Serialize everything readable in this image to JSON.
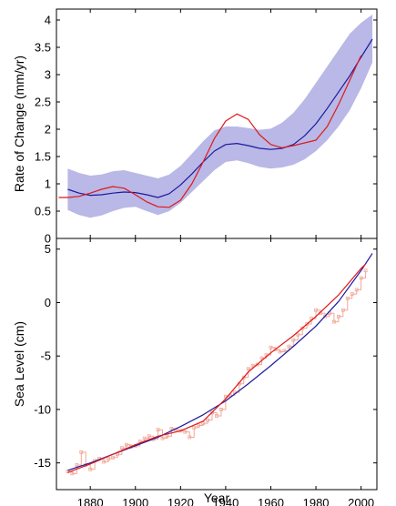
{
  "chart_data": [
    {
      "type": "line",
      "panel": "top",
      "title": "",
      "xlabel": "",
      "ylabel": "Rate of Change (mm/yr)",
      "xlim": [
        1865,
        2007
      ],
      "ylim": [
        0,
        4.2
      ],
      "grid": false,
      "legend": "none",
      "x_ticks": [
        1880,
        1900,
        1920,
        1940,
        1960,
        1980,
        2000
      ],
      "y_ticks": [
        "0",
        "0.5",
        "1",
        "1.5",
        "2",
        "2.5",
        "3",
        "3.5",
        "4"
      ],
      "colors": {
        "band": "#b9b8e6",
        "blue": "#1a1aa0",
        "red": "#e01818"
      },
      "series": [
        {
          "style": "band",
          "x": [
            1870,
            1875,
            1880,
            1885,
            1890,
            1895,
            1900,
            1905,
            1910,
            1915,
            1920,
            1925,
            1930,
            1935,
            1940,
            1945,
            1950,
            1955,
            1960,
            1965,
            1970,
            1975,
            1980,
            1985,
            1990,
            1995,
            2000,
            2005
          ],
          "lower": [
            0.52,
            0.43,
            0.38,
            0.42,
            0.5,
            0.56,
            0.58,
            0.5,
            0.43,
            0.5,
            0.65,
            0.85,
            1.05,
            1.25,
            1.4,
            1.43,
            1.38,
            1.31,
            1.28,
            1.3,
            1.35,
            1.45,
            1.6,
            1.8,
            2.05,
            2.35,
            2.75,
            3.22
          ],
          "upper": [
            1.28,
            1.2,
            1.15,
            1.17,
            1.23,
            1.25,
            1.2,
            1.15,
            1.1,
            1.17,
            1.33,
            1.55,
            1.78,
            1.98,
            2.05,
            2.05,
            2.02,
            1.99,
            2.01,
            2.12,
            2.3,
            2.55,
            2.85,
            3.15,
            3.45,
            3.75,
            3.95,
            4.1
          ]
        },
        {
          "style": "line",
          "color": "blue",
          "x": [
            1870,
            1875,
            1880,
            1885,
            1890,
            1895,
            1900,
            1905,
            1910,
            1915,
            1920,
            1925,
            1930,
            1935,
            1940,
            1945,
            1950,
            1955,
            1960,
            1965,
            1970,
            1975,
            1980,
            1985,
            1990,
            1995,
            2000,
            2005
          ],
          "y": [
            0.9,
            0.83,
            0.79,
            0.8,
            0.83,
            0.85,
            0.84,
            0.8,
            0.75,
            0.82,
            0.98,
            1.18,
            1.4,
            1.6,
            1.72,
            1.74,
            1.7,
            1.65,
            1.63,
            1.65,
            1.72,
            1.88,
            2.1,
            2.38,
            2.68,
            2.98,
            3.32,
            3.65
          ]
        },
        {
          "style": "line",
          "color": "red",
          "x": [
            1866,
            1870,
            1875,
            1880,
            1885,
            1890,
            1895,
            1900,
            1905,
            1910,
            1915,
            1920,
            1925,
            1930,
            1935,
            1940,
            1945,
            1950,
            1955,
            1960,
            1965,
            1970,
            1975,
            1980,
            1985,
            1990,
            1995,
            2000
          ],
          "y": [
            0.75,
            0.75,
            0.77,
            0.83,
            0.9,
            0.95,
            0.92,
            0.8,
            0.67,
            0.58,
            0.57,
            0.7,
            1.0,
            1.4,
            1.83,
            2.15,
            2.28,
            2.18,
            1.9,
            1.72,
            1.66,
            1.7,
            1.75,
            1.8,
            2.05,
            2.45,
            2.9,
            3.35
          ]
        }
      ]
    },
    {
      "type": "line",
      "panel": "bottom",
      "title": "",
      "xlabel": "Year",
      "ylabel": "Sea Level (cm)",
      "xlim": [
        1865,
        2007
      ],
      "ylim": [
        -17.5,
        6
      ],
      "grid": false,
      "legend": "none",
      "x_ticks": [
        1880,
        1900,
        1920,
        1940,
        1960,
        1980,
        2000
      ],
      "y_ticks": [
        "-15",
        "-10",
        "-5",
        "0",
        "5"
      ],
      "colors": {
        "data": "#f0a898",
        "blue": "#1a1aa0",
        "red": "#e01818"
      },
      "series": [
        {
          "style": "markers-step",
          "color": "data",
          "x": [
            1870,
            1872,
            1874,
            1876,
            1878,
            1880,
            1882,
            1884,
            1886,
            1888,
            1890,
            1892,
            1894,
            1896,
            1898,
            1900,
            1902,
            1904,
            1906,
            1908,
            1910,
            1912,
            1914,
            1916,
            1918,
            1920,
            1922,
            1924,
            1926,
            1928,
            1930,
            1932,
            1934,
            1936,
            1938,
            1940,
            1942,
            1944,
            1946,
            1948,
            1950,
            1952,
            1954,
            1956,
            1958,
            1960,
            1962,
            1964,
            1966,
            1968,
            1970,
            1972,
            1974,
            1976,
            1978,
            1980,
            1982,
            1984,
            1986,
            1988,
            1990,
            1992,
            1994,
            1996,
            1998,
            2000,
            2002
          ],
          "y": [
            -15.8,
            -16.0,
            -15.2,
            -14.0,
            -15.2,
            -15.6,
            -14.8,
            -14.6,
            -14.9,
            -14.6,
            -14.5,
            -14.2,
            -13.6,
            -13.3,
            -13.5,
            -13.4,
            -13.0,
            -12.7,
            -12.5,
            -12.8,
            -11.9,
            -12.7,
            -12.5,
            -11.8,
            -11.9,
            -12.0,
            -12.1,
            -12.6,
            -11.7,
            -11.5,
            -11.3,
            -11.0,
            -10.3,
            -10.6,
            -10.0,
            -8.8,
            -8.7,
            -8.4,
            -7.6,
            -7.0,
            -6.2,
            -5.9,
            -5.8,
            -5.2,
            -4.9,
            -4.2,
            -4.4,
            -4.6,
            -4.5,
            -4.1,
            -3.5,
            -3.0,
            -2.4,
            -2.0,
            -1.5,
            -0.7,
            -1.0,
            -1.3,
            -1.0,
            -1.8,
            -1.3,
            -0.7,
            0.4,
            0.8,
            1.2,
            2.3,
            3.0
          ]
        },
        {
          "style": "line",
          "color": "blue",
          "x": [
            1870,
            1880,
            1890,
            1900,
            1910,
            1920,
            1930,
            1940,
            1950,
            1960,
            1970,
            1980,
            1990,
            2000,
            2005
          ],
          "y": [
            -15.7,
            -15.0,
            -14.2,
            -13.4,
            -12.6,
            -11.6,
            -10.5,
            -9.2,
            -7.6,
            -5.9,
            -4.1,
            -2.2,
            0.1,
            3.0,
            4.6
          ]
        },
        {
          "style": "line",
          "color": "red",
          "x": [
            1870,
            1880,
            1890,
            1900,
            1910,
            1920,
            1930,
            1940,
            1950,
            1960,
            1970,
            1980,
            1990,
            2000,
            2002
          ],
          "y": [
            -15.9,
            -15.1,
            -14.2,
            -13.3,
            -12.5,
            -12.0,
            -11.1,
            -9.0,
            -6.5,
            -4.7,
            -3.1,
            -1.3,
            0.7,
            3.2,
            3.6
          ]
        }
      ]
    }
  ]
}
